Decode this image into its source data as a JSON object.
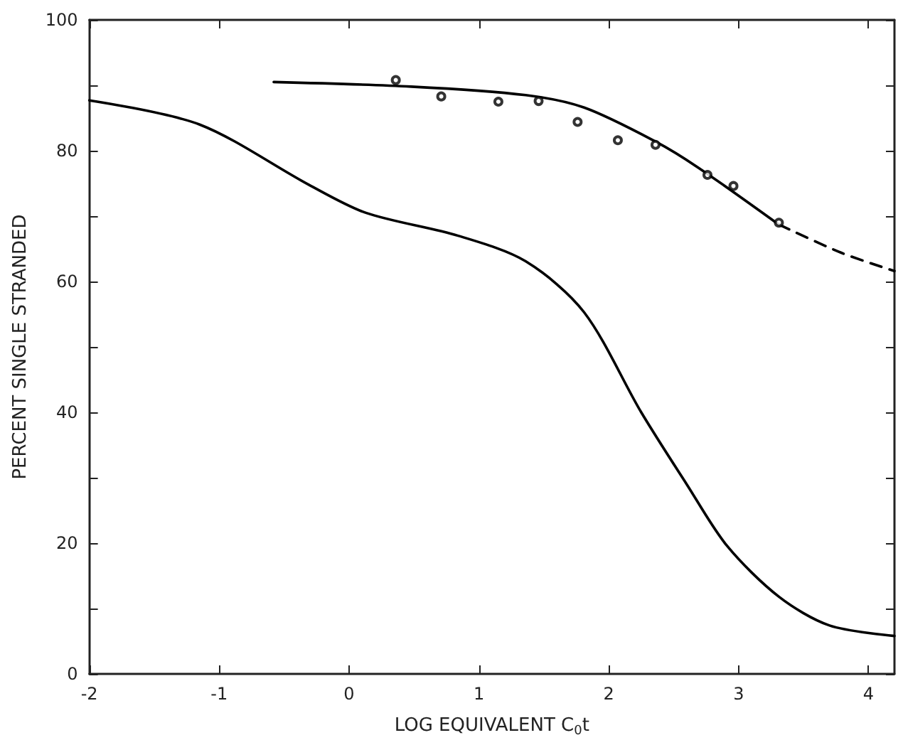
{
  "chart_data": {
    "type": "line",
    "xlabel": "LOG EQUIVALENT C$_{0}$t",
    "ylabel": "PERCENT SINGLE STRANDED",
    "xlim": [
      -2,
      4.2
    ],
    "xticks": [
      -2,
      -1,
      0,
      1,
      2,
      3,
      4
    ],
    "ylim": [
      0,
      100
    ],
    "yticks": [
      0,
      {
        "value": 10,
        "label": null
      },
      20,
      {
        "value": 30,
        "label": null
      },
      40,
      {
        "value": 50,
        "label": null
      },
      60,
      {
        "value": 70,
        "label": null
      },
      80,
      {
        "value": 90,
        "label": null
      },
      100
    ],
    "series": [
      {
        "color": "#000000",
        "marker": "none",
        "line_style": "solid",
        "x": [
          -2,
          -1.15,
          -0.31,
          0.13,
          0.84,
          1.36,
          1.81,
          2.25,
          2.6,
          2.91,
          3.31,
          3.7,
          4.2
        ],
        "values": [
          87.7,
          84,
          74.8,
          70.5,
          67,
          63.1,
          55.3,
          40,
          29,
          19.6,
          11.8,
          7.4,
          5.8
        ]
      },
      {
        "color": "#000000",
        "marker": "none",
        "line_style": "solid",
        "x": [
          -0.58,
          0.48,
          1.36,
          1.81,
          2.36,
          2.69,
          3.31
        ],
        "values": [
          90.5,
          89.8,
          88.5,
          86.6,
          81.4,
          77.4,
          68.7
        ]
      },
      {
        "color": "#000000",
        "marker": "none",
        "line_style": "dashed",
        "x": [
          3.31,
          3.79,
          4.2
        ],
        "values": [
          68.7,
          64.4,
          61.6
        ]
      },
      {
        "type": "scatter",
        "color": "#000000",
        "marker": "circle",
        "x": [
          0.36,
          0.71,
          1.15,
          1.46,
          1.76,
          2.07,
          2.36,
          2.76,
          2.96,
          3.31
        ],
        "values": [
          90.8,
          88.3,
          87.5,
          87.6,
          84.4,
          81.6,
          80.9,
          76.3,
          74.6,
          69
        ]
      }
    ]
  }
}
